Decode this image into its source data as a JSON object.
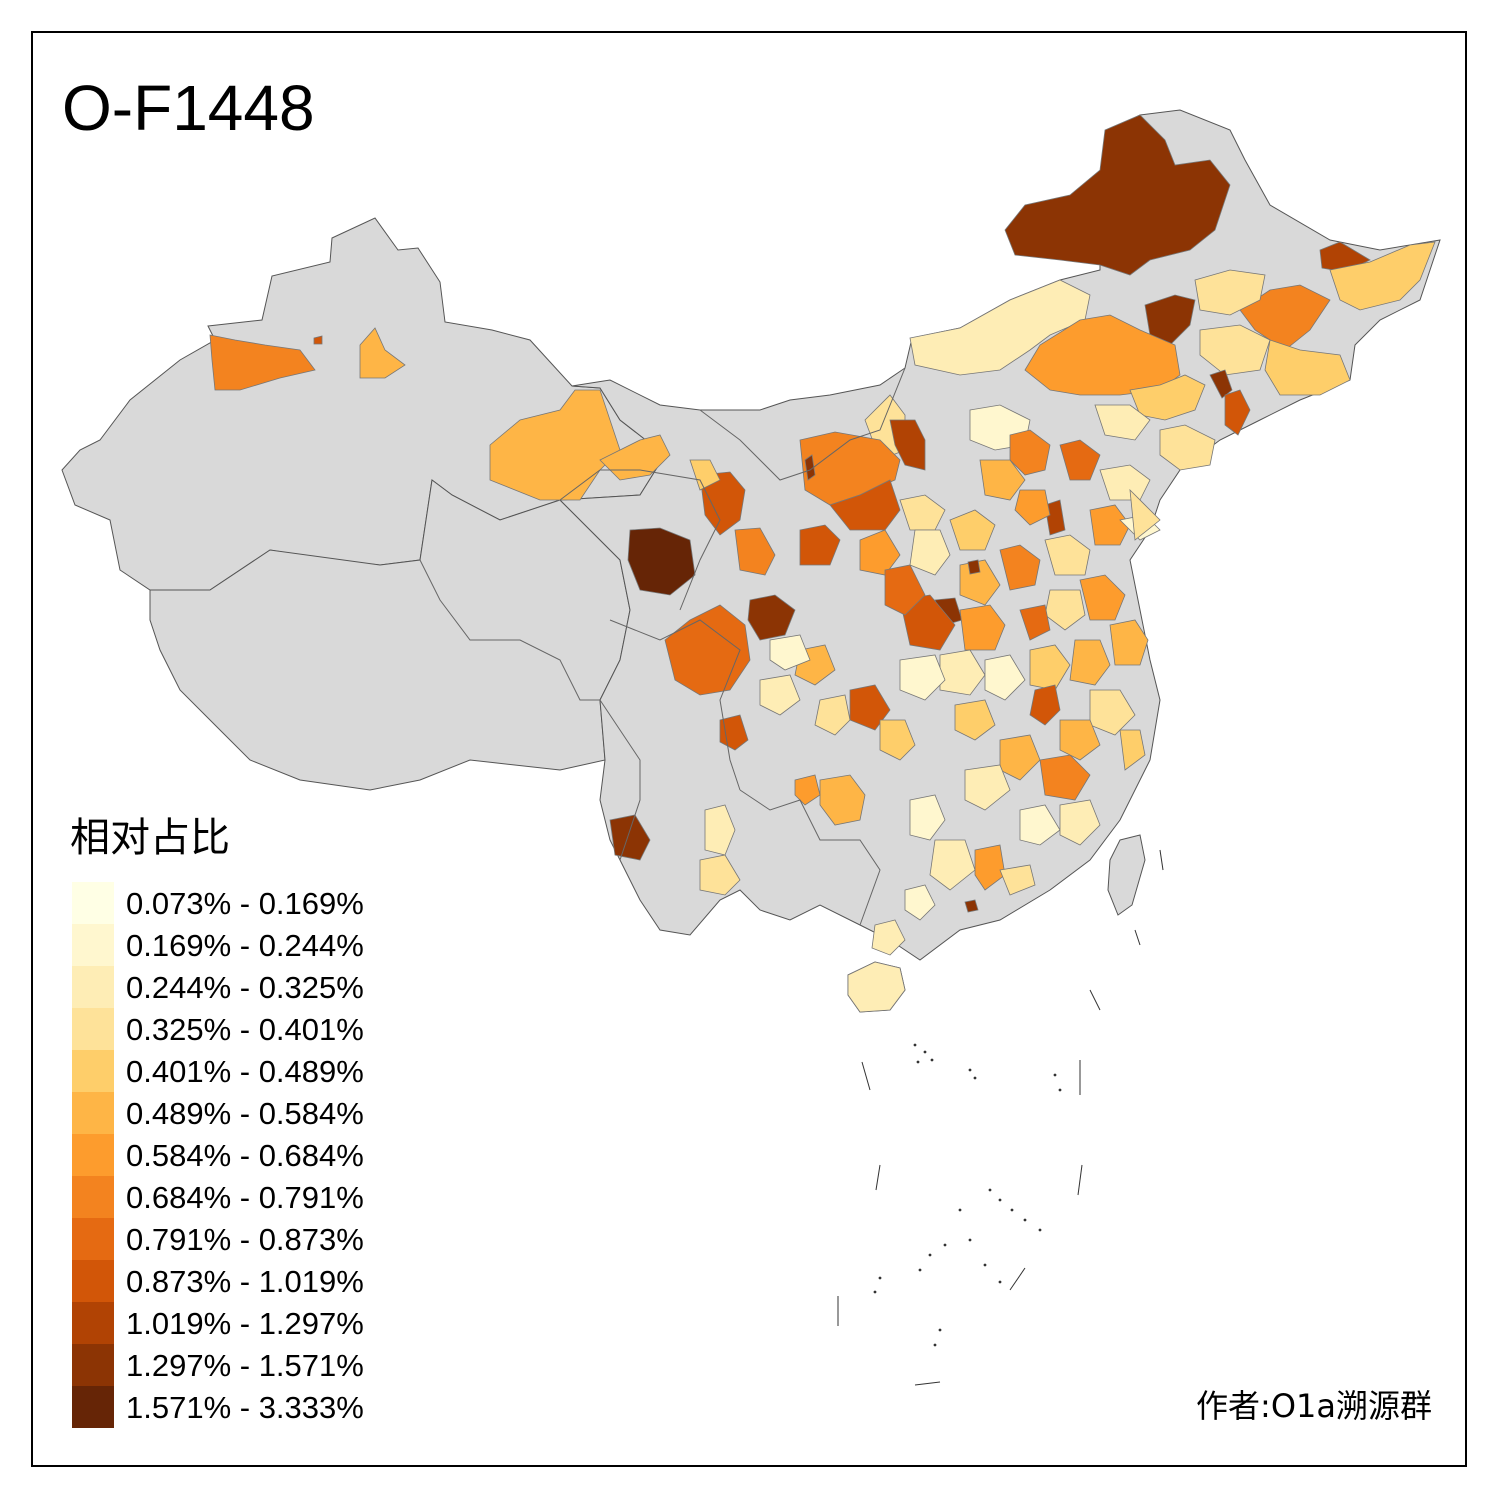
{
  "map": {
    "title": "O-F1448",
    "credit": "作者:O1a溯源群",
    "no_data_color": "#d9d9d9",
    "border_color": "#555555",
    "legend": {
      "title": "相对占比",
      "classes": [
        {
          "label": "0.073% - 0.169%",
          "color": "#ffffe5"
        },
        {
          "label": "0.169% - 0.244%",
          "color": "#fff7cf"
        },
        {
          "label": "0.244% - 0.325%",
          "color": "#feedb5"
        },
        {
          "label": "0.325% - 0.401%",
          "color": "#fee299"
        },
        {
          "label": "0.401% - 0.489%",
          "color": "#fece6a"
        },
        {
          "label": "0.489% - 0.584%",
          "color": "#feb546"
        },
        {
          "label": "0.584% - 0.684%",
          "color": "#fd9c2d"
        },
        {
          "label": "0.684% - 0.791%",
          "color": "#f3831f"
        },
        {
          "label": "0.791% - 0.873%",
          "color": "#e56a12"
        },
        {
          "label": "0.873% - 1.019%",
          "color": "#d25608"
        },
        {
          "label": "1.019% - 1.297%",
          "color": "#b14304"
        },
        {
          "label": "1.297% - 1.571%",
          "color": "#8c3404"
        },
        {
          "label": "1.571% - 3.333%",
          "color": "#662506"
        }
      ]
    }
  }
}
